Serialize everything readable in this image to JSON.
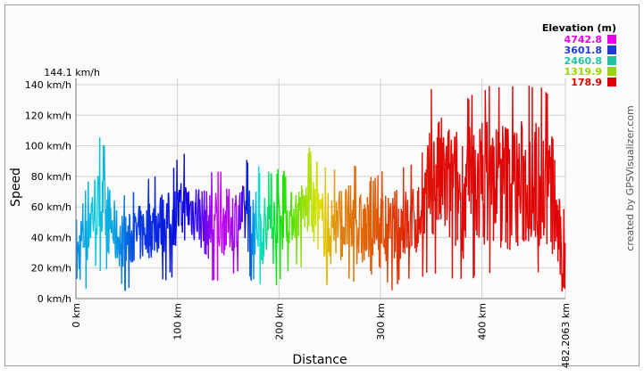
{
  "chart_data": {
    "type": "line",
    "xlabel": "Distance",
    "ylabel": "Speed",
    "x_unit": "km",
    "y_unit": "km/h",
    "xlim": [
      0,
      482.2063
    ],
    "ylim": [
      0,
      144.1
    ],
    "x_ticks": [
      {
        "value": 0,
        "label": "0 km"
      },
      {
        "value": 100,
        "label": "100 km"
      },
      {
        "value": 200,
        "label": "200 km"
      },
      {
        "value": 300,
        "label": "300 km"
      },
      {
        "value": 400,
        "label": "400 km"
      },
      {
        "value": 482.2063,
        "label": "482.2063 km"
      }
    ],
    "y_ticks": [
      {
        "value": 0,
        "label": "0 km/h"
      },
      {
        "value": 20,
        "label": "20 km/h"
      },
      {
        "value": 40,
        "label": "40 km/h"
      },
      {
        "value": 60,
        "label": "60 km/h"
      },
      {
        "value": 80,
        "label": "80 km/h"
      },
      {
        "value": 100,
        "label": "100 km/h"
      },
      {
        "value": 120,
        "label": "120 km/h"
      },
      {
        "value": 140,
        "label": "140 km/h"
      },
      {
        "value": 144.1,
        "label": "144.1 km/h"
      }
    ],
    "grid": true,
    "color_by": "elevation",
    "legend": {
      "title": "Elevation (m)",
      "position": "top-right",
      "entries": [
        {
          "label": "4742.8",
          "color": "#e800e8"
        },
        {
          "label": "3601.8",
          "color": "#1f3bd6"
        },
        {
          "label": "2460.8",
          "color": "#22c4a0"
        },
        {
          "label": "1319.9",
          "color": "#9ad600"
        },
        {
          "label": "178.9",
          "color": "#dd0000"
        }
      ]
    },
    "envelope": {
      "x": [
        0,
        10,
        20,
        30,
        40,
        50,
        60,
        70,
        80,
        90,
        100,
        110,
        120,
        130,
        140,
        150,
        160,
        170,
        180,
        190,
        200,
        210,
        220,
        230,
        240,
        250,
        260,
        270,
        280,
        290,
        300,
        310,
        320,
        330,
        340,
        350,
        360,
        370,
        380,
        390,
        400,
        410,
        420,
        430,
        440,
        450,
        460,
        470,
        480
      ],
      "y_max": [
        55,
        100,
        108,
        105,
        80,
        65,
        72,
        78,
        85,
        88,
        92,
        98,
        97,
        85,
        88,
        88,
        95,
        92,
        88,
        85,
        85,
        85,
        95,
        100,
        90,
        85,
        90,
        90,
        85,
        82,
        85,
        82,
        90,
        88,
        95,
        140,
        142,
        135,
        130,
        138,
        140,
        140,
        143,
        140,
        140,
        142,
        138,
        135,
        60
      ],
      "y_high": [
        40,
        80,
        85,
        80,
        60,
        55,
        60,
        65,
        70,
        70,
        75,
        80,
        78,
        70,
        72,
        72,
        75,
        75,
        70,
        70,
        70,
        70,
        75,
        80,
        72,
        70,
        75,
        75,
        70,
        68,
        70,
        68,
        75,
        72,
        80,
        115,
        120,
        115,
        110,
        115,
        120,
        118,
        120,
        118,
        118,
        120,
        115,
        110,
        40
      ],
      "y_low": [
        3,
        20,
        35,
        30,
        20,
        20,
        22,
        25,
        28,
        30,
        35,
        38,
        35,
        25,
        28,
        28,
        35,
        30,
        25,
        15,
        30,
        35,
        40,
        40,
        30,
        20,
        25,
        25,
        20,
        15,
        20,
        18,
        25,
        22,
        30,
        40,
        35,
        30,
        25,
        30,
        35,
        35,
        30,
        30,
        30,
        35,
        30,
        25,
        0
      ],
      "y_min": [
        0,
        5,
        20,
        15,
        5,
        5,
        8,
        10,
        10,
        12,
        15,
        18,
        15,
        10,
        10,
        10,
        15,
        10,
        10,
        2,
        10,
        15,
        20,
        20,
        10,
        5,
        8,
        8,
        5,
        5,
        5,
        5,
        8,
        8,
        10,
        15,
        15,
        12,
        10,
        12,
        15,
        15,
        12,
        12,
        12,
        15,
        12,
        10,
        0
      ]
    },
    "elevation_profile": {
      "x": [
        0,
        20,
        40,
        60,
        80,
        100,
        120,
        140,
        160,
        180,
        200,
        220,
        240,
        260,
        280,
        300,
        320,
        340,
        360,
        400,
        440,
        482
      ],
      "elevation_m": [
        3300,
        3000,
        3200,
        3600,
        3700,
        3800,
        4000,
        4600,
        4400,
        2900,
        2000,
        1500,
        1100,
        700,
        600,
        500,
        350,
        250,
        200,
        180,
        180,
        180
      ]
    }
  },
  "credit": "created by GPSVisualizer.com"
}
